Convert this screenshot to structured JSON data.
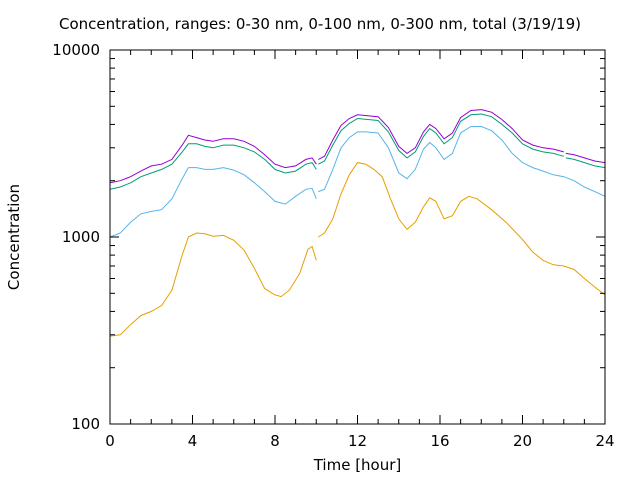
{
  "chart_data": {
    "type": "line",
    "title": "Concentration, ranges: 0-30 nm, 0-100 nm, 0-300 nm, total (3/19/19)",
    "xlabel": "Time [hour]",
    "ylabel": "Concentration",
    "xlim": [
      0,
      24
    ],
    "ylim": [
      100,
      10000
    ],
    "yscale": "log",
    "xticks": [
      "0",
      "4",
      "8",
      "12",
      "16",
      "20",
      "24"
    ],
    "yticks": [
      "100",
      "1000",
      "10000"
    ],
    "grid": false,
    "legend": "none",
    "series": [
      {
        "color": "#e69f00",
        "segments": [
          [
            [
              0,
              295
            ],
            [
              0.5,
              300
            ],
            [
              1,
              340
            ],
            [
              1.5,
              380
            ],
            [
              2,
              400
            ],
            [
              2.5,
              430
            ],
            [
              3,
              520
            ],
            [
              3.5,
              800
            ],
            [
              3.8,
              1000
            ],
            [
              4.2,
              1050
            ],
            [
              4.6,
              1040
            ],
            [
              5,
              1010
            ],
            [
              5.5,
              1020
            ],
            [
              6,
              960
            ],
            [
              6.5,
              850
            ],
            [
              7,
              680
            ],
            [
              7.5,
              530
            ],
            [
              8,
              490
            ],
            [
              8.3,
              480
            ],
            [
              8.7,
              520
            ],
            [
              9.2,
              640
            ],
            [
              9.6,
              860
            ],
            [
              9.8,
              890
            ],
            [
              10,
              750
            ]
          ],
          [
            [
              10.1,
              1000
            ],
            [
              10.4,
              1050
            ],
            [
              10.8,
              1250
            ],
            [
              11.2,
              1700
            ],
            [
              11.6,
              2150
            ],
            [
              12,
              2500
            ],
            [
              12.4,
              2450
            ],
            [
              12.8,
              2300
            ],
            [
              13.2,
              2100
            ],
            [
              13.6,
              1600
            ],
            [
              14,
              1250
            ],
            [
              14.4,
              1100
            ],
            [
              14.8,
              1200
            ],
            [
              15.2,
              1450
            ],
            [
              15.5,
              1620
            ],
            [
              15.8,
              1550
            ],
            [
              16.2,
              1250
            ],
            [
              16.6,
              1300
            ],
            [
              17,
              1550
            ],
            [
              17.4,
              1650
            ],
            [
              17.8,
              1600
            ],
            [
              18.5,
              1400
            ],
            [
              19.2,
              1200
            ],
            [
              20,
              970
            ],
            [
              20.5,
              830
            ],
            [
              21,
              750
            ],
            [
              21.5,
              710
            ],
            [
              22,
              700
            ],
            [
              22.5,
              670
            ],
            [
              23,
              600
            ],
            [
              23.5,
              540
            ],
            [
              24,
              490
            ]
          ]
        ]
      },
      {
        "color": "#56b4e9",
        "segments": [
          [
            [
              0,
              1000
            ],
            [
              0.5,
              1050
            ],
            [
              1,
              1200
            ],
            [
              1.5,
              1330
            ],
            [
              2,
              1370
            ],
            [
              2.5,
              1400
            ],
            [
              3,
              1600
            ],
            [
              3.5,
              2050
            ],
            [
              3.8,
              2350
            ],
            [
              4.2,
              2350
            ],
            [
              4.6,
              2300
            ],
            [
              5,
              2300
            ],
            [
              5.5,
              2350
            ],
            [
              6,
              2280
            ],
            [
              6.5,
              2150
            ],
            [
              7,
              1950
            ],
            [
              7.5,
              1750
            ],
            [
              8,
              1550
            ],
            [
              8.5,
              1500
            ],
            [
              9,
              1650
            ],
            [
              9.5,
              1800
            ],
            [
              9.8,
              1820
            ],
            [
              10,
              1600
            ]
          ],
          [
            [
              10.1,
              1750
            ],
            [
              10.4,
              1800
            ],
            [
              10.8,
              2300
            ],
            [
              11.2,
              3000
            ],
            [
              11.6,
              3400
            ],
            [
              12,
              3650
            ],
            [
              12.4,
              3650
            ],
            [
              13,
              3600
            ],
            [
              13.5,
              3000
            ],
            [
              14,
              2200
            ],
            [
              14.4,
              2050
            ],
            [
              14.8,
              2300
            ],
            [
              15.2,
              2950
            ],
            [
              15.5,
              3200
            ],
            [
              15.8,
              3000
            ],
            [
              16.2,
              2600
            ],
            [
              16.6,
              2800
            ],
            [
              17,
              3600
            ],
            [
              17.5,
              3900
            ],
            [
              18,
              3900
            ],
            [
              18.5,
              3700
            ],
            [
              19,
              3300
            ],
            [
              19.5,
              2800
            ],
            [
              20,
              2500
            ],
            [
              20.5,
              2350
            ],
            [
              21,
              2250
            ],
            [
              21.5,
              2150
            ],
            [
              22,
              2100
            ],
            [
              22.5,
              2000
            ],
            [
              23,
              1850
            ],
            [
              23.5,
              1750
            ],
            [
              24,
              1650
            ]
          ]
        ]
      },
      {
        "color": "#009e73",
        "segments": [
          [
            [
              0,
              1800
            ],
            [
              0.5,
              1850
            ],
            [
              1,
              1950
            ],
            [
              1.5,
              2100
            ],
            [
              2,
              2200
            ],
            [
              2.5,
              2300
            ],
            [
              3,
              2450
            ],
            [
              3.5,
              2850
            ],
            [
              3.8,
              3150
            ],
            [
              4.2,
              3150
            ],
            [
              4.6,
              3050
            ],
            [
              5,
              3000
            ],
            [
              5.5,
              3100
            ],
            [
              6,
              3100
            ],
            [
              6.5,
              3000
            ],
            [
              7,
              2850
            ],
            [
              7.5,
              2600
            ],
            [
              8,
              2300
            ],
            [
              8.5,
              2200
            ],
            [
              9,
              2250
            ],
            [
              9.5,
              2450
            ],
            [
              9.8,
              2500
            ],
            [
              10,
              2300
            ]
          ],
          [
            [
              10.1,
              2450
            ],
            [
              10.4,
              2550
            ],
            [
              10.8,
              3100
            ],
            [
              11.2,
              3700
            ],
            [
              11.6,
              4050
            ],
            [
              12,
              4300
            ],
            [
              12.5,
              4250
            ],
            [
              13,
              4200
            ],
            [
              13.5,
              3650
            ],
            [
              14,
              2900
            ],
            [
              14.4,
              2650
            ],
            [
              14.8,
              2850
            ],
            [
              15.2,
              3450
            ],
            [
              15.5,
              3800
            ],
            [
              15.8,
              3600
            ],
            [
              16.2,
              3150
            ],
            [
              16.6,
              3400
            ],
            [
              17,
              4150
            ],
            [
              17.5,
              4500
            ],
            [
              18,
              4550
            ],
            [
              18.5,
              4400
            ],
            [
              19,
              4000
            ],
            [
              19.5,
              3600
            ],
            [
              20,
              3150
            ],
            [
              20.5,
              2950
            ],
            [
              21,
              2850
            ],
            [
              21.5,
              2800
            ],
            [
              22,
              2700
            ]
          ],
          [
            [
              22.1,
              2650
            ],
            [
              22.5,
              2600
            ],
            [
              23,
              2500
            ],
            [
              23.5,
              2400
            ],
            [
              24,
              2350
            ]
          ]
        ]
      },
      {
        "color": "#9400d3",
        "segments": [
          [
            [
              0,
              1950
            ],
            [
              0.5,
              2000
            ],
            [
              1,
              2100
            ],
            [
              1.5,
              2250
            ],
            [
              2,
              2400
            ],
            [
              2.5,
              2450
            ],
            [
              3,
              2600
            ],
            [
              3.5,
              3100
            ],
            [
              3.8,
              3500
            ],
            [
              4.2,
              3400
            ],
            [
              4.6,
              3300
            ],
            [
              5,
              3250
            ],
            [
              5.5,
              3350
            ],
            [
              6,
              3350
            ],
            [
              6.5,
              3250
            ],
            [
              7,
              3050
            ],
            [
              7.5,
              2750
            ],
            [
              8,
              2450
            ],
            [
              8.5,
              2350
            ],
            [
              9,
              2400
            ],
            [
              9.5,
              2600
            ],
            [
              9.8,
              2650
            ],
            [
              10,
              2450
            ]
          ],
          [
            [
              10.1,
              2600
            ],
            [
              10.4,
              2700
            ],
            [
              10.8,
              3300
            ],
            [
              11.2,
              3950
            ],
            [
              11.6,
              4300
            ],
            [
              12,
              4500
            ],
            [
              12.5,
              4450
            ],
            [
              13,
              4400
            ],
            [
              13.5,
              3850
            ],
            [
              14,
              3050
            ],
            [
              14.4,
              2800
            ],
            [
              14.8,
              3000
            ],
            [
              15.2,
              3650
            ],
            [
              15.5,
              4000
            ],
            [
              15.8,
              3800
            ],
            [
              16.2,
              3350
            ],
            [
              16.6,
              3600
            ],
            [
              17,
              4350
            ],
            [
              17.5,
              4750
            ],
            [
              18,
              4800
            ],
            [
              18.5,
              4650
            ],
            [
              19,
              4250
            ],
            [
              19.5,
              3800
            ],
            [
              20,
              3300
            ],
            [
              20.5,
              3100
            ],
            [
              21,
              3000
            ],
            [
              21.5,
              2950
            ],
            [
              22,
              2850
            ]
          ],
          [
            [
              22.1,
              2800
            ],
            [
              22.5,
              2750
            ],
            [
              23,
              2650
            ],
            [
              23.5,
              2550
            ],
            [
              24,
              2500
            ]
          ]
        ]
      }
    ]
  }
}
